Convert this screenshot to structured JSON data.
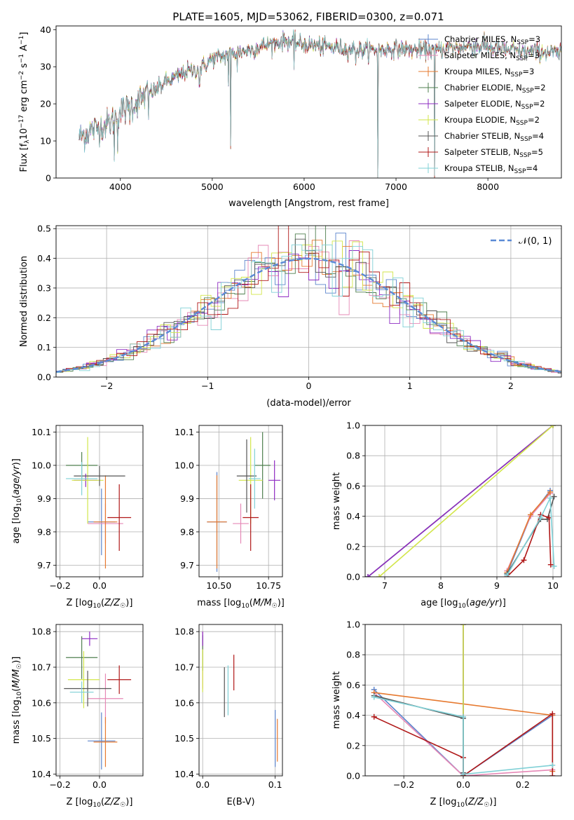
{
  "figure_title": "PLATE=1605, MJD=53062, FIBERID=0300, z=0.071",
  "models": [
    {
      "name": "Chabrier MILES, N$_{SSP}$=3",
      "label_main": "Chabrier MILES, N",
      "label_sub": "SSP",
      "label_end": "=3",
      "color": "#5b84cc"
    },
    {
      "name": "Salpeter MILES, N$_{SSP}$=3",
      "label_main": "Salpeter MILES, N",
      "label_sub": "SSP",
      "label_end": "=3",
      "color": "#e688b6"
    },
    {
      "name": "Kroupa MILES, N$_{SSP}$=3",
      "label_main": "Kroupa MILES, N",
      "label_sub": "SSP",
      "label_end": "=3",
      "color": "#e6792f"
    },
    {
      "name": "Chabrier ELODIE, N$_{SSP}$=2",
      "label_main": "Chabrier ELODIE, N",
      "label_sub": "SSP",
      "label_end": "=2",
      "color": "#4f7f4f"
    },
    {
      "name": "Salpeter ELODIE, N$_{SSP}$=2",
      "label_main": "Salpeter ELODIE, N",
      "label_sub": "SSP",
      "label_end": "=2",
      "color": "#8e2bc2"
    },
    {
      "name": "Kroupa ELODIE, N$_{SSP}$=2",
      "label_main": "Kroupa ELODIE, N",
      "label_sub": "SSP",
      "label_end": "=2",
      "color": "#d2e64a"
    },
    {
      "name": "Chabrier STELIB, N$_{SSP}$=4",
      "label_main": "Chabrier STELIB, N",
      "label_sub": "SSP",
      "label_end": "=4",
      "color": "#555555"
    },
    {
      "name": "Salpeter STELIB, N$_{SSP}$=5",
      "label_main": "Salpeter STELIB, N",
      "label_sub": "SSP",
      "label_end": "=5",
      "color": "#b01818"
    },
    {
      "name": "Kroupa STELIB, N$_{SSP}$=4",
      "label_main": "Kroupa STELIB, N",
      "label_sub": "SSP",
      "label_end": "=4",
      "color": "#7fd0d6"
    }
  ],
  "chart_data": [
    {
      "id": "spectrum",
      "type": "line",
      "title": "PLATE=1605, MJD=53062, FIBERID=0300, z=0.071",
      "xlabel": "wavelength [Angstrom, rest frame]",
      "ylabel": "Flux [f_λ 10^-17 erg cm^-2 s^-1 A^-1]",
      "ylabel_parts": {
        "a": "Flux [f",
        "a_sub": "λ",
        "b": "10",
        "b_sup": "−17",
        "c": " erg cm",
        "c_sup": "−2",
        "d": " s",
        "d_sup": "−1",
        "e": " A",
        "e_sup": "−1",
        "f": "]"
      },
      "xlim": [
        3300,
        8800
      ],
      "ylim": [
        0,
        41
      ],
      "xticks": [
        4000,
        5000,
        6000,
        7000,
        8000
      ],
      "yticks": [
        0,
        10,
        20,
        30,
        40
      ],
      "grid": false,
      "legend_position": "top-right",
      "continuum": {
        "x": [
          3550,
          3700,
          3800,
          3900,
          4000,
          4100,
          4200,
          4300,
          4400,
          4500,
          4600,
          4700,
          4800,
          4900,
          5000,
          5200,
          5400,
          5600,
          5800,
          6000,
          6200,
          6400,
          6600,
          6800,
          7000,
          7200,
          7400,
          7600,
          7800,
          8000,
          8200,
          8400,
          8600,
          8800
        ],
        "y": [
          11,
          13,
          14,
          15,
          18,
          19,
          21,
          23,
          24,
          26,
          27,
          28.5,
          29,
          30,
          32,
          33.5,
          34.5,
          36,
          37,
          36,
          35.5,
          35,
          34.5,
          34.5,
          35,
          34.5,
          34.5,
          35,
          35.5,
          35.5,
          34.5,
          34,
          34,
          33.5
        ]
      },
      "features": [
        {
          "x": 3934,
          "y": 5
        },
        {
          "x": 3969,
          "y": 7
        },
        {
          "x": 4101,
          "y": 15
        },
        {
          "x": 4304,
          "y": 16
        },
        {
          "x": 4861,
          "y": 25
        },
        {
          "x": 5175,
          "y": 25
        },
        {
          "x": 5200,
          "y": 8.5
        },
        {
          "x": 5270,
          "y": 29
        },
        {
          "x": 5890,
          "y": 29.5
        },
        {
          "x": 6563,
          "y": 31
        },
        {
          "x": 6800,
          "y": 0
        },
        {
          "x": 7420,
          "y": 0
        }
      ]
    },
    {
      "id": "residuals",
      "type": "line",
      "title": "",
      "xlabel": "(data-model)/error",
      "ylabel": "Normed distribution",
      "xlim": [
        -2.5,
        2.5
      ],
      "ylim": [
        0,
        0.51
      ],
      "xticks": [
        -2,
        -1,
        0,
        1,
        2
      ],
      "xtick_labels": [
        "−2",
        "−1",
        "0",
        "1",
        "2"
      ],
      "yticks": [
        0.0,
        0.1,
        0.2,
        0.3,
        0.4,
        0.5
      ],
      "ytick_labels": [
        "0.0",
        "0.1",
        "0.2",
        "0.3",
        "0.4",
        "0.5"
      ],
      "grid": true,
      "legend_position": "top-right",
      "legend_label": "𝒩(0, 1)",
      "reference_series": {
        "name": "𝒩(0, 1)",
        "mu": 0,
        "sigma": 1,
        "style": "dashed",
        "color": "#5b8ad6"
      },
      "histogram_bin_width": 0.1
    },
    {
      "id": "age_vs_Z",
      "type": "scatter",
      "xlabel": "Z [log10(Z/Z☉)]",
      "ylabel": "age  [log10(age/yr)]",
      "xlim": [
        -0.22,
        0.22
      ],
      "ylim": [
        9.665,
        10.12
      ],
      "xticks": [
        -0.2,
        0.0
      ],
      "xtick_labels": [
        "−0.2",
        "0.0"
      ],
      "yticks": [
        9.7,
        9.8,
        9.9,
        10.0,
        10.1
      ],
      "ytick_labels": [
        "9.7",
        "9.8",
        "9.9",
        "10.0",
        "10.1"
      ],
      "grid": true,
      "points": [
        {
          "model": 0,
          "x": 0.01,
          "xerr": 0.07,
          "y": 9.83,
          "yerr": 0.1
        },
        {
          "model": 1,
          "x": 0.03,
          "xerr": 0.09,
          "y": 9.825,
          "yerr": 0.06
        },
        {
          "model": 2,
          "x": 0.03,
          "xerr": 0.06,
          "y": 9.83,
          "yerr": 0.14
        },
        {
          "model": 3,
          "x": -0.09,
          "xerr": 0.08,
          "y": 10.0,
          "yerr": 0.04
        },
        {
          "model": 4,
          "x": -0.07,
          "xerr": 0.06,
          "y": 9.955,
          "yerr": 0.02
        },
        {
          "model": 5,
          "x": -0.06,
          "xerr": 0.08,
          "y": 9.955,
          "yerr": 0.13
        },
        {
          "model": 6,
          "x": 0.0,
          "xerr": 0.13,
          "y": 9.968,
          "yerr": 0.03
        },
        {
          "model": 7,
          "x": 0.1,
          "xerr": 0.06,
          "y": 9.843,
          "yerr": 0.1
        },
        {
          "model": 8,
          "x": -0.09,
          "xerr": 0.08,
          "y": 9.96,
          "yerr": 0.05
        }
      ]
    },
    {
      "id": "age_vs_mass",
      "type": "scatter",
      "xlabel": "mass [log10(M/M☉)]",
      "ylabel": "",
      "xlim": [
        10.4,
        10.82
      ],
      "ylim": [
        9.665,
        10.12
      ],
      "xticks": [
        10.5,
        10.75
      ],
      "xtick_labels": [
        "10.50",
        "10.75"
      ],
      "yticks": [
        9.7,
        9.8,
        9.9,
        10.0,
        10.1
      ],
      "ytick_labels": [
        "9.7",
        "9.8",
        "9.9",
        "10.0",
        "10.1"
      ],
      "grid": true,
      "points": [
        {
          "model": 0,
          "x": 10.49,
          "xerr": 0.05,
          "y": 9.83,
          "yerr": 0.15
        },
        {
          "model": 1,
          "x": 10.61,
          "xerr": 0.04,
          "y": 9.825,
          "yerr": 0.06
        },
        {
          "model": 2,
          "x": 10.49,
          "xerr": 0.05,
          "y": 9.83,
          "yerr": 0.14
        },
        {
          "model": 3,
          "x": 10.72,
          "xerr": 0.04,
          "y": 10.0,
          "yerr": 0.1
        },
        {
          "model": 4,
          "x": 10.78,
          "xerr": 0.03,
          "y": 9.955,
          "yerr": 0.06
        },
        {
          "model": 5,
          "x": 10.66,
          "xerr": 0.06,
          "y": 9.955,
          "yerr": 0.13
        },
        {
          "model": 6,
          "x": 10.64,
          "xerr": 0.05,
          "y": 9.968,
          "yerr": 0.11
        },
        {
          "model": 7,
          "x": 10.66,
          "xerr": 0.04,
          "y": 9.843,
          "yerr": 0.1
        },
        {
          "model": 8,
          "x": 10.68,
          "xerr": 0.03,
          "y": 9.96,
          "yerr": 0.09
        }
      ]
    },
    {
      "id": "weight_vs_age",
      "type": "line",
      "xlabel": "age  [log10(age/yr)]",
      "ylabel": "mass weight",
      "xlim": [
        6.65,
        10.15
      ],
      "ylim": [
        0,
        1.0
      ],
      "xticks": [
        7,
        8,
        9,
        10
      ],
      "xtick_labels": [
        "7",
        "8",
        "9",
        "10"
      ],
      "yticks": [
        0.0,
        0.2,
        0.4,
        0.6,
        0.8,
        1.0
      ],
      "ytick_labels": [
        "0.0",
        "0.2",
        "0.4",
        "0.6",
        "0.8",
        "1.0"
      ],
      "grid": true,
      "series": [
        {
          "model": 0,
          "x": [
            9.18,
            9.6,
            9.95
          ],
          "y": [
            0.02,
            0.4,
            0.57
          ]
        },
        {
          "model": 1,
          "x": [
            9.18,
            9.6,
            9.95
          ],
          "y": [
            0.04,
            0.4,
            0.55
          ]
        },
        {
          "model": 2,
          "x": [
            9.18,
            9.6,
            9.95
          ],
          "y": [
            0.03,
            0.41,
            0.56
          ]
        },
        {
          "model": 3,
          "x": [
            6.7,
            10.0
          ],
          "y": [
            0.0,
            1.0
          ]
        },
        {
          "model": 4,
          "x": [
            6.7,
            10.0
          ],
          "y": [
            0.0,
            1.0
          ]
        },
        {
          "model": 5,
          "x": [
            6.9,
            10.0
          ],
          "y": [
            0.0,
            1.0
          ]
        },
        {
          "model": 6,
          "x": [
            9.18,
            9.78,
            9.9,
            10.02
          ],
          "y": [
            0.02,
            0.38,
            0.38,
            0.53
          ]
        },
        {
          "model": 7,
          "x": [
            9.18,
            9.48,
            9.78,
            9.93,
            9.96
          ],
          "y": [
            0.0,
            0.11,
            0.41,
            0.39,
            0.08
          ]
        },
        {
          "model": 8,
          "x": [
            9.18,
            9.78,
            9.95,
            10.02
          ],
          "y": [
            0.01,
            0.39,
            0.52,
            0.07
          ]
        }
      ]
    },
    {
      "id": "mass_vs_Z",
      "type": "scatter",
      "xlabel": "Z [log10(Z/Z☉)]",
      "ylabel": "mass [log10(M/M☉)]",
      "xlim": [
        -0.22,
        0.22
      ],
      "ylim": [
        10.395,
        10.82
      ],
      "xticks": [
        -0.2,
        0.0
      ],
      "xtick_labels": [
        "−0.2",
        "0.0"
      ],
      "yticks": [
        10.4,
        10.5,
        10.6,
        10.7,
        10.8
      ],
      "ytick_labels": [
        "10.4",
        "10.5",
        "10.6",
        "10.7",
        "10.8"
      ],
      "grid": true,
      "points": [
        {
          "model": 0,
          "x": 0.01,
          "xerr": 0.07,
          "y": 10.493,
          "yerr": 0.08
        },
        {
          "model": 1,
          "x": 0.03,
          "xerr": 0.09,
          "y": 10.612,
          "yerr": 0.07
        },
        {
          "model": 2,
          "x": 0.03,
          "xerr": 0.06,
          "y": 10.49,
          "yerr": 0.07
        },
        {
          "model": 3,
          "x": -0.09,
          "xerr": 0.08,
          "y": 10.727,
          "yerr": 0.06
        },
        {
          "model": 4,
          "x": -0.05,
          "xerr": 0.04,
          "y": 10.78,
          "yerr": 0.02
        },
        {
          "model": 5,
          "x": -0.08,
          "xerr": 0.08,
          "y": 10.665,
          "yerr": 0.08
        },
        {
          "model": 6,
          "x": -0.06,
          "xerr": 0.12,
          "y": 10.64,
          "yerr": 0.05
        },
        {
          "model": 7,
          "x": 0.1,
          "xerr": 0.06,
          "y": 10.665,
          "yerr": 0.04
        },
        {
          "model": 8,
          "x": -0.09,
          "xerr": 0.06,
          "y": 10.63,
          "yerr": 0.03
        }
      ]
    },
    {
      "id": "mass_vs_ebv",
      "type": "scatter",
      "xlabel": "E(B-V)",
      "ylabel": "",
      "xlim": [
        -0.005,
        0.11
      ],
      "ylim": [
        10.395,
        10.82
      ],
      "xticks": [
        0.0,
        0.1
      ],
      "xtick_labels": [
        "0.0",
        "0.1"
      ],
      "yticks": [
        10.4,
        10.5,
        10.6,
        10.7,
        10.8
      ],
      "ytick_labels": [
        "10.4",
        "10.5",
        "10.6",
        "10.7",
        "10.8"
      ],
      "grid": true,
      "points": [
        {
          "model": 0,
          "x": 0.1,
          "xerr": 0,
          "y": 10.5,
          "yerr": 0.08
        },
        {
          "model": 1,
          "x": 0.0,
          "xerr": 0,
          "y": 10.72,
          "yerr": 0.08
        },
        {
          "model": 2,
          "x": 0.103,
          "xerr": 0,
          "y": 10.495,
          "yerr": 0.06
        },
        {
          "model": 3,
          "x": 0.0,
          "xerr": 0,
          "y": 10.74,
          "yerr": 0.05
        },
        {
          "model": 4,
          "x": 0.0,
          "xerr": 0,
          "y": 10.78,
          "yerr": 0.02
        },
        {
          "model": 5,
          "x": 0.0,
          "xerr": 0,
          "y": 10.69,
          "yerr": 0.06
        },
        {
          "model": 6,
          "x": 0.03,
          "xerr": 0,
          "y": 10.63,
          "yerr": 0.07
        },
        {
          "model": 7,
          "x": 0.043,
          "xerr": 0,
          "y": 10.685,
          "yerr": 0.05
        },
        {
          "model": 8,
          "x": 0.035,
          "xerr": 0,
          "y": 10.635,
          "yerr": 0.07
        }
      ]
    },
    {
      "id": "weight_vs_Z",
      "type": "line",
      "xlabel": "Z [log10(Z/Z☉)]",
      "ylabel": "mass weight",
      "xlim": [
        -0.33,
        0.33
      ],
      "ylim": [
        0,
        1.0
      ],
      "xticks": [
        -0.2,
        0.0,
        0.2
      ],
      "xtick_labels": [
        "−0.2",
        "0.0",
        "0.2"
      ],
      "yticks": [
        0.0,
        0.2,
        0.4,
        0.6,
        0.8,
        1.0
      ],
      "ytick_labels": [
        "0.0",
        "0.2",
        "0.4",
        "0.6",
        "0.8",
        "1.0"
      ],
      "grid": true,
      "series": [
        {
          "model": 0,
          "x": [
            -0.3,
            0.0,
            0.3
          ],
          "y": [
            0.57,
            0.0,
            0.4
          ]
        },
        {
          "model": 1,
          "x": [
            -0.3,
            0.0,
            0.3
          ],
          "y": [
            0.55,
            0.0,
            0.04
          ]
        },
        {
          "model": 2,
          "x": [
            -0.3,
            0.3,
            0.3
          ],
          "y": [
            0.55,
            0.4,
            0.03
          ]
        },
        {
          "model": 3,
          "x": [
            0.0,
            0.0
          ],
          "y": [
            0.0,
            1.0
          ]
        },
        {
          "model": 4,
          "x": [
            0.0,
            0.0
          ],
          "y": [
            0.0,
            1.0
          ]
        },
        {
          "model": 5,
          "x": [
            0.0,
            0.0
          ],
          "y": [
            0.0,
            1.0
          ]
        },
        {
          "model": 6,
          "x": [
            -0.3,
            0.0,
            0.0
          ],
          "y": [
            0.53,
            0.38,
            0.02
          ]
        },
        {
          "model": 7,
          "x": [
            -0.3,
            0.0,
            0.0,
            0.3,
            0.3
          ],
          "y": [
            0.39,
            0.12,
            0.0,
            0.41,
            0.0
          ]
        },
        {
          "model": 8,
          "x": [
            -0.3,
            0.0,
            0.0,
            0.3
          ],
          "y": [
            0.52,
            0.39,
            0.01,
            0.07
          ]
        }
      ]
    }
  ]
}
